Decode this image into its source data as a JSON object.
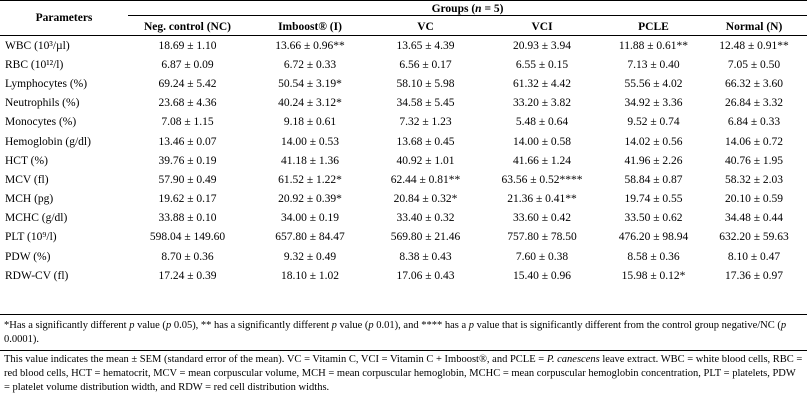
{
  "header": {
    "parameters": "Parameters",
    "groups": "Groups (n = 5)",
    "columns": [
      "Neg. control (NC)",
      "Imboost® (I)",
      "VC",
      "VCI",
      "PCLE",
      "Normal (N)"
    ]
  },
  "rows": [
    {
      "param": "WBC (10³/µl)",
      "values": [
        "18.69 ± 1.10",
        "13.66 ± 0.96**",
        "13.65 ± 4.39",
        "20.93 ± 3.94",
        "11.88 ± 0.61**",
        "12.48 ± 0.91**"
      ]
    },
    {
      "param": "RBC (10¹²/l)",
      "values": [
        "6.87 ± 0.09",
        "6.72 ± 0.33",
        "6.56 ± 0.17",
        "6.55 ± 0.15",
        "7.13 ± 0.40",
        "7.05 ± 0.50"
      ]
    },
    {
      "param": "Lymphocytes (%)",
      "values": [
        "69.24 ± 5.42",
        "50.54 ± 3.19*",
        "58.10 ± 5.98",
        "61.32 ± 4.42",
        "55.56 ± 4.02",
        "66.32 ± 3.60"
      ]
    },
    {
      "param": "Neutrophils (%)",
      "values": [
        "23.68 ± 4.36",
        "40.24 ± 3.12*",
        "34.58 ± 5.45",
        "33.20 ± 3.82",
        "34.92 ± 3.36",
        "26.84 ± 3.32"
      ]
    },
    {
      "param": "Monocytes (%)",
      "values": [
        "7.08 ± 1.15",
        "9.18 ± 0.61",
        "7.32 ± 1.23",
        "5.48 ± 0.64",
        "9.52 ± 0.74",
        "6.84 ± 0.33"
      ]
    },
    {
      "param": "Hemoglobin (g/dl)",
      "values": [
        "13.46 ± 0.07",
        "14.00 ± 0.53",
        "13.68 ± 0.45",
        "14.00 ± 0.58",
        "14.02 ± 0.56",
        "14.06 ± 0.72"
      ]
    },
    {
      "param": "HCT (%)",
      "values": [
        "39.76 ± 0.19",
        "41.18 ± 1.36",
        "40.92 ± 1.01",
        "41.66 ± 1.24",
        "41.96 ± 2.26",
        "40.76 ± 1.95"
      ]
    },
    {
      "param": "MCV (fl)",
      "values": [
        "57.90 ± 0.49",
        "61.52 ± 1.22*",
        "62.44 ± 0.81**",
        "63.56 ± 0.52****",
        "58.84 ± 0.87",
        "58.32 ± 2.03"
      ]
    },
    {
      "param": "MCH (pg)",
      "values": [
        "19.62 ± 0.17",
        "20.92 ± 0.39*",
        "20.84 ± 0.32*",
        "21.36 ± 0.41**",
        "19.74 ± 0.55",
        "20.10 ± 0.59"
      ]
    },
    {
      "param": "MCHC (g/dl)",
      "values": [
        "33.88 ± 0.10",
        "34.00 ± 0.19",
        "33.40 ± 0.32",
        "33.60 ± 0.42",
        "33.50 ± 0.62",
        "34.48 ± 0.44"
      ]
    },
    {
      "param": "PLT (10⁹/l)",
      "values": [
        "598.04 ± 149.60",
        "657.80 ± 84.47",
        "569.80 ± 21.46",
        "757.80 ± 78.50",
        "476.20 ± 98.94",
        "632.20 ± 59.63"
      ]
    },
    {
      "param": "PDW (%)",
      "values": [
        "8.70 ± 0.36",
        "9.32 ± 0.49",
        "8.38 ± 0.43",
        "7.60 ± 0.38",
        "8.58 ± 0.36",
        "8.10 ± 0.47"
      ]
    },
    {
      "param": "RDW-CV (fl)",
      "values": [
        "17.24 ± 0.39",
        "18.10 ± 1.02",
        "17.06 ± 0.43",
        "15.40 ± 0.96",
        "15.98 ± 0.12*",
        "17.36 ± 0.97"
      ]
    }
  ],
  "notes": {
    "significance": "*Has a significantly different p value (p 0.05), ** has a significantly different p value (p 0.01), and **** has a p value that is significantly different from the control group negative/NC (p 0.0001).",
    "legend": "This value indicates the mean ± SEM (standard error of the mean). VC = Vitamin C, VCI = Vitamin C + Imboost®, and PCLE = P. canescens leave extract. WBC = white blood cells, RBC = red blood cells, HCT = hematocrit, MCV = mean corpuscular volume, MCH = mean corpuscular hemoglobin, MCHC = mean corpuscular hemoglobin concentration, PLT = platelets, PDW = platelet volume distribution width, and RDW = red cell distribution widths."
  }
}
